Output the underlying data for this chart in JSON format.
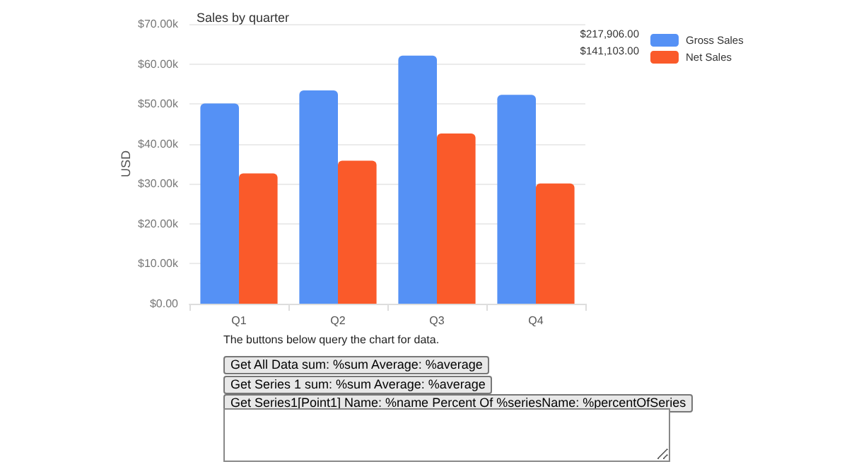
{
  "chart_data": {
    "type": "bar",
    "title": "Sales by quarter",
    "ylabel": "USD",
    "categories": [
      "Q1",
      "Q2",
      "Q3",
      "Q4"
    ],
    "series": [
      {
        "name": "Gross Sales",
        "color": "#5591f5",
        "values": [
          50100,
          53400,
          62100,
          52300
        ]
      },
      {
        "name": "Net Sales",
        "color": "#fa5a2a",
        "values": [
          32600,
          35800,
          42600,
          30100
        ]
      }
    ],
    "ylim": [
      0,
      70000
    ],
    "yticks": [
      {
        "value": 0,
        "label": "$0.00"
      },
      {
        "value": 10000,
        "label": "$10.00k"
      },
      {
        "value": 20000,
        "label": "$20.00k"
      },
      {
        "value": 30000,
        "label": "$30.00k"
      },
      {
        "value": 40000,
        "label": "$40.00k"
      },
      {
        "value": 50000,
        "label": "$50.00k"
      },
      {
        "value": 60000,
        "label": "$60.00k"
      },
      {
        "value": 70000,
        "label": "$70.00k"
      }
    ],
    "grid": "y",
    "legend": "top right",
    "annotations": [
      "$217,906.00",
      "$141,103.00",
      "The buttons below query the chart for data.",
      "Get All Data sum: %sum Average: %average",
      "Get Series 1 sum: %sum Average: %average",
      "Get Series1[Point1] Name: %name Percent Of %seriesName: %percentOfSeries"
    ]
  }
}
